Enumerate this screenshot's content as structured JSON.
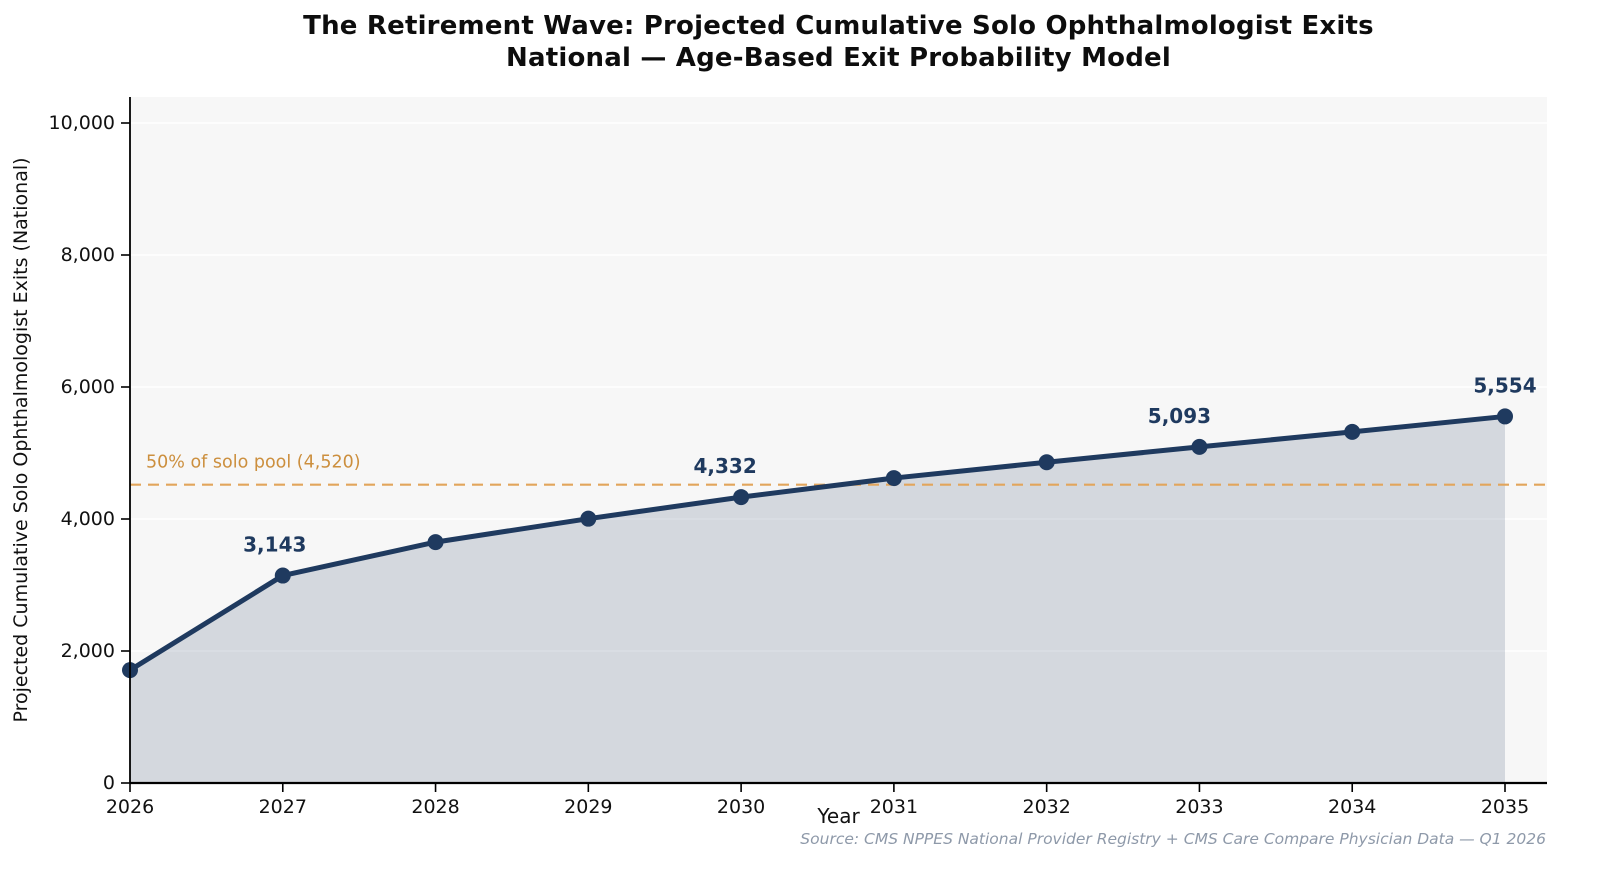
{
  "chart_data": {
    "type": "area",
    "title": "The Retirement Wave: Projected Cumulative Solo Ophthalmologist Exits\nNational — Age-Based Exit Probability Model",
    "xlabel": "Year",
    "ylabel": "Projected Cumulative Solo Ophthalmologist Exits (National)",
    "source_note": "Source: CMS NPPES National Provider Registry + CMS Care Compare Physician Data — Q1 2026",
    "x": [
      2026,
      2027,
      2028,
      2029,
      2030,
      2031,
      2032,
      2033,
      2034,
      2035
    ],
    "series": [
      {
        "name": "Projected cumulative solo ophthalmologist exits",
        "values": [
          1710,
          3143,
          3650,
          4005,
          4332,
          4620,
          4860,
          5093,
          5320,
          5554
        ]
      }
    ],
    "point_labels": [
      {
        "x": 2027,
        "text": "3,143"
      },
      {
        "x": 2030,
        "text": "4,332"
      },
      {
        "x": 2033,
        "text": "5,093"
      },
      {
        "x": 2035,
        "text": "5,554"
      }
    ],
    "threshold": {
      "value": 4520,
      "label": "50% of solo pool (4,520)"
    },
    "ylim": [
      0,
      10400
    ],
    "yticks": [
      0,
      2000,
      4000,
      6000,
      8000,
      10000
    ],
    "ytick_labels": [
      "0",
      "2,000",
      "4,000",
      "6,000",
      "8,000",
      "10,000"
    ],
    "grid": "horizontal",
    "legend": "none",
    "colors": {
      "line": "#1f3a5f",
      "marker": "#1f3a5f",
      "annotation": "#1f3a5f",
      "area_fill": "rgba(31,58,95,0.16)",
      "threshold_line": "#e2a55c",
      "threshold_label": "#cc8f3e",
      "plot_bg": "#f7f7f7",
      "grid_line": "#ffffff",
      "axis": "#000000",
      "tick_label": "#111111",
      "source": "#8e99a9"
    }
  }
}
